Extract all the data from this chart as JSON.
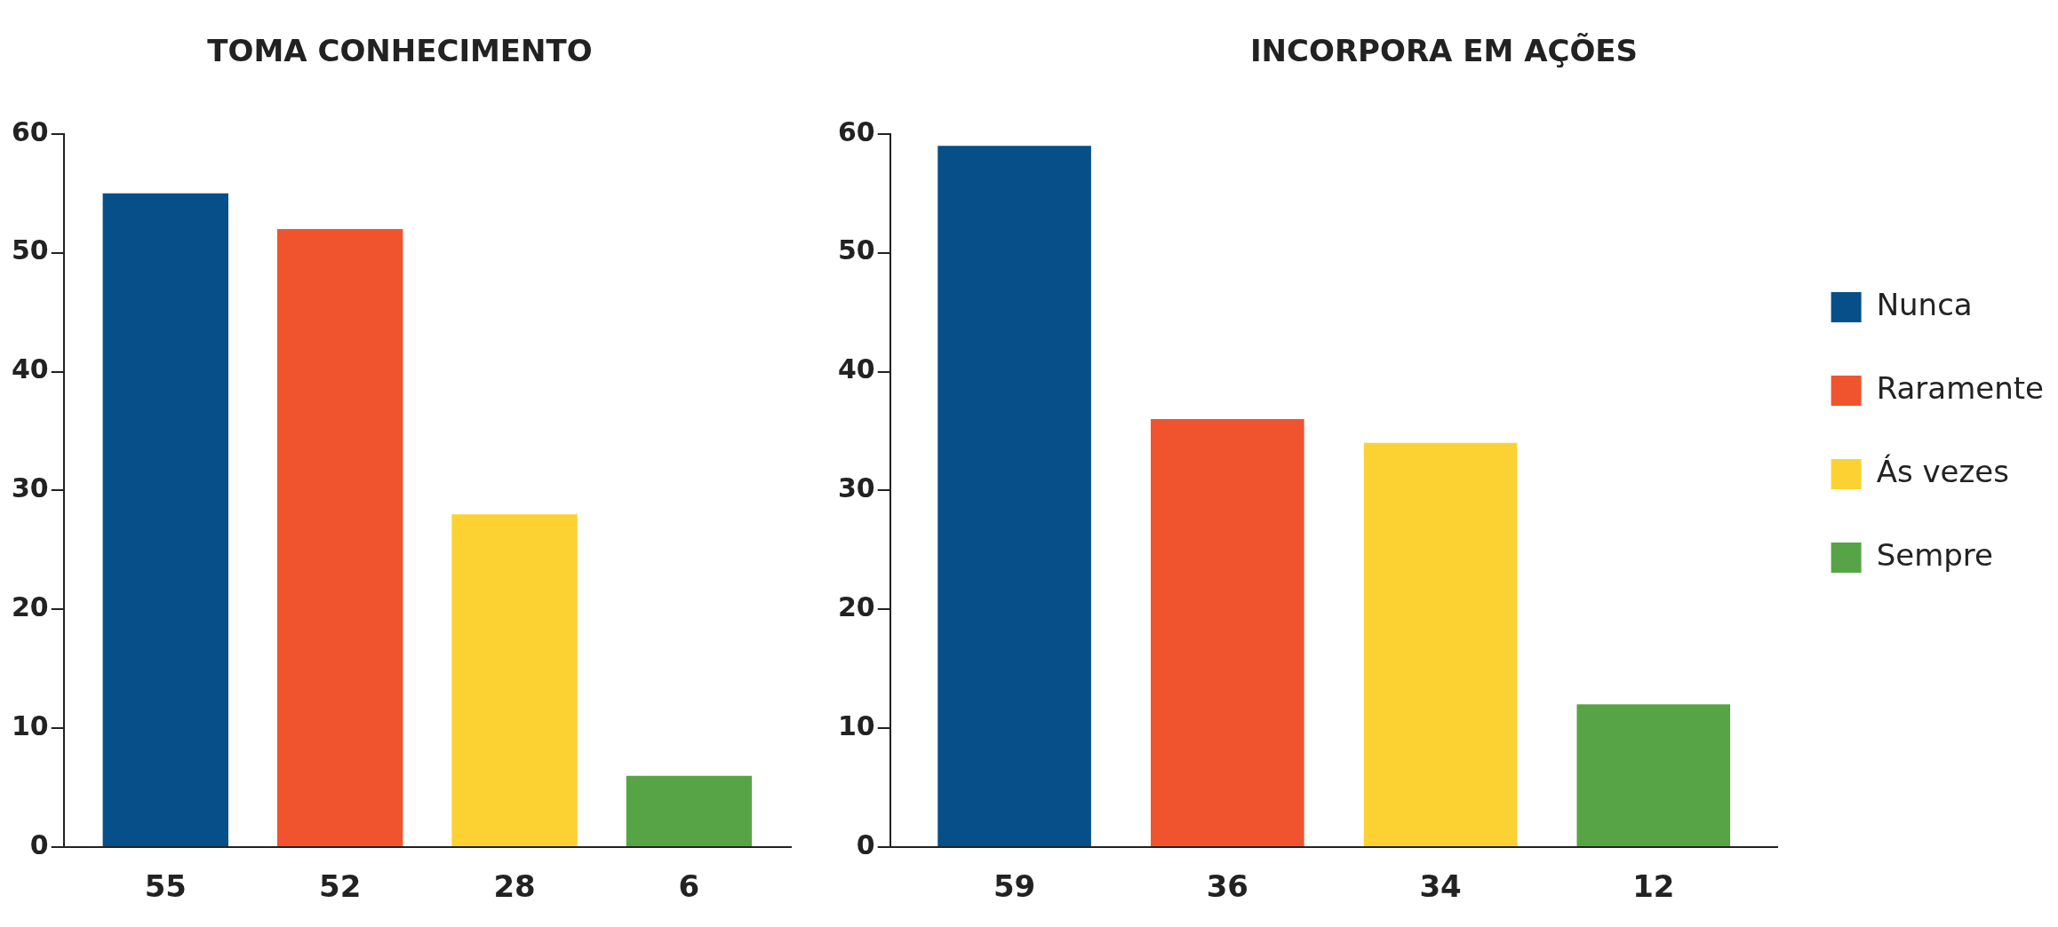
{
  "chart_data": [
    {
      "type": "bar",
      "title": "TOMA CONHECIMENTO",
      "categories": [
        null
      ],
      "series": [
        {
          "color": "#064f88",
          "values": [
            55
          ]
        },
        {
          "color": "#f0542f",
          "values": [
            52
          ]
        },
        {
          "color": "#fcd233",
          "values": [
            28
          ]
        },
        {
          "color": "#56a446",
          "values": [
            6
          ]
        }
      ],
      "ylim": [
        0,
        60
      ],
      "yticks": [
        0,
        10,
        20,
        30,
        40,
        50,
        60
      ],
      "grid": false,
      "legend": false,
      "data_labels": true
    },
    {
      "type": "bar",
      "title": "INCORPORA EM AÇÕES",
      "categories": [
        null
      ],
      "series": [
        {
          "name": "Nunca",
          "color": "#064f88",
          "values": [
            59
          ]
        },
        {
          "name": "Raramente",
          "color": "#f0542f",
          "values": [
            36
          ]
        },
        {
          "name": "Ás vezes",
          "color": "#fcd233",
          "values": [
            34
          ]
        },
        {
          "name": "Sempre",
          "color": "#56a446",
          "values": [
            12
          ]
        }
      ],
      "ylim": [
        0,
        60
      ],
      "yticks": [
        0,
        10,
        20,
        30,
        40,
        50,
        60
      ],
      "grid": false,
      "legend": "right",
      "data_labels": true
    }
  ]
}
